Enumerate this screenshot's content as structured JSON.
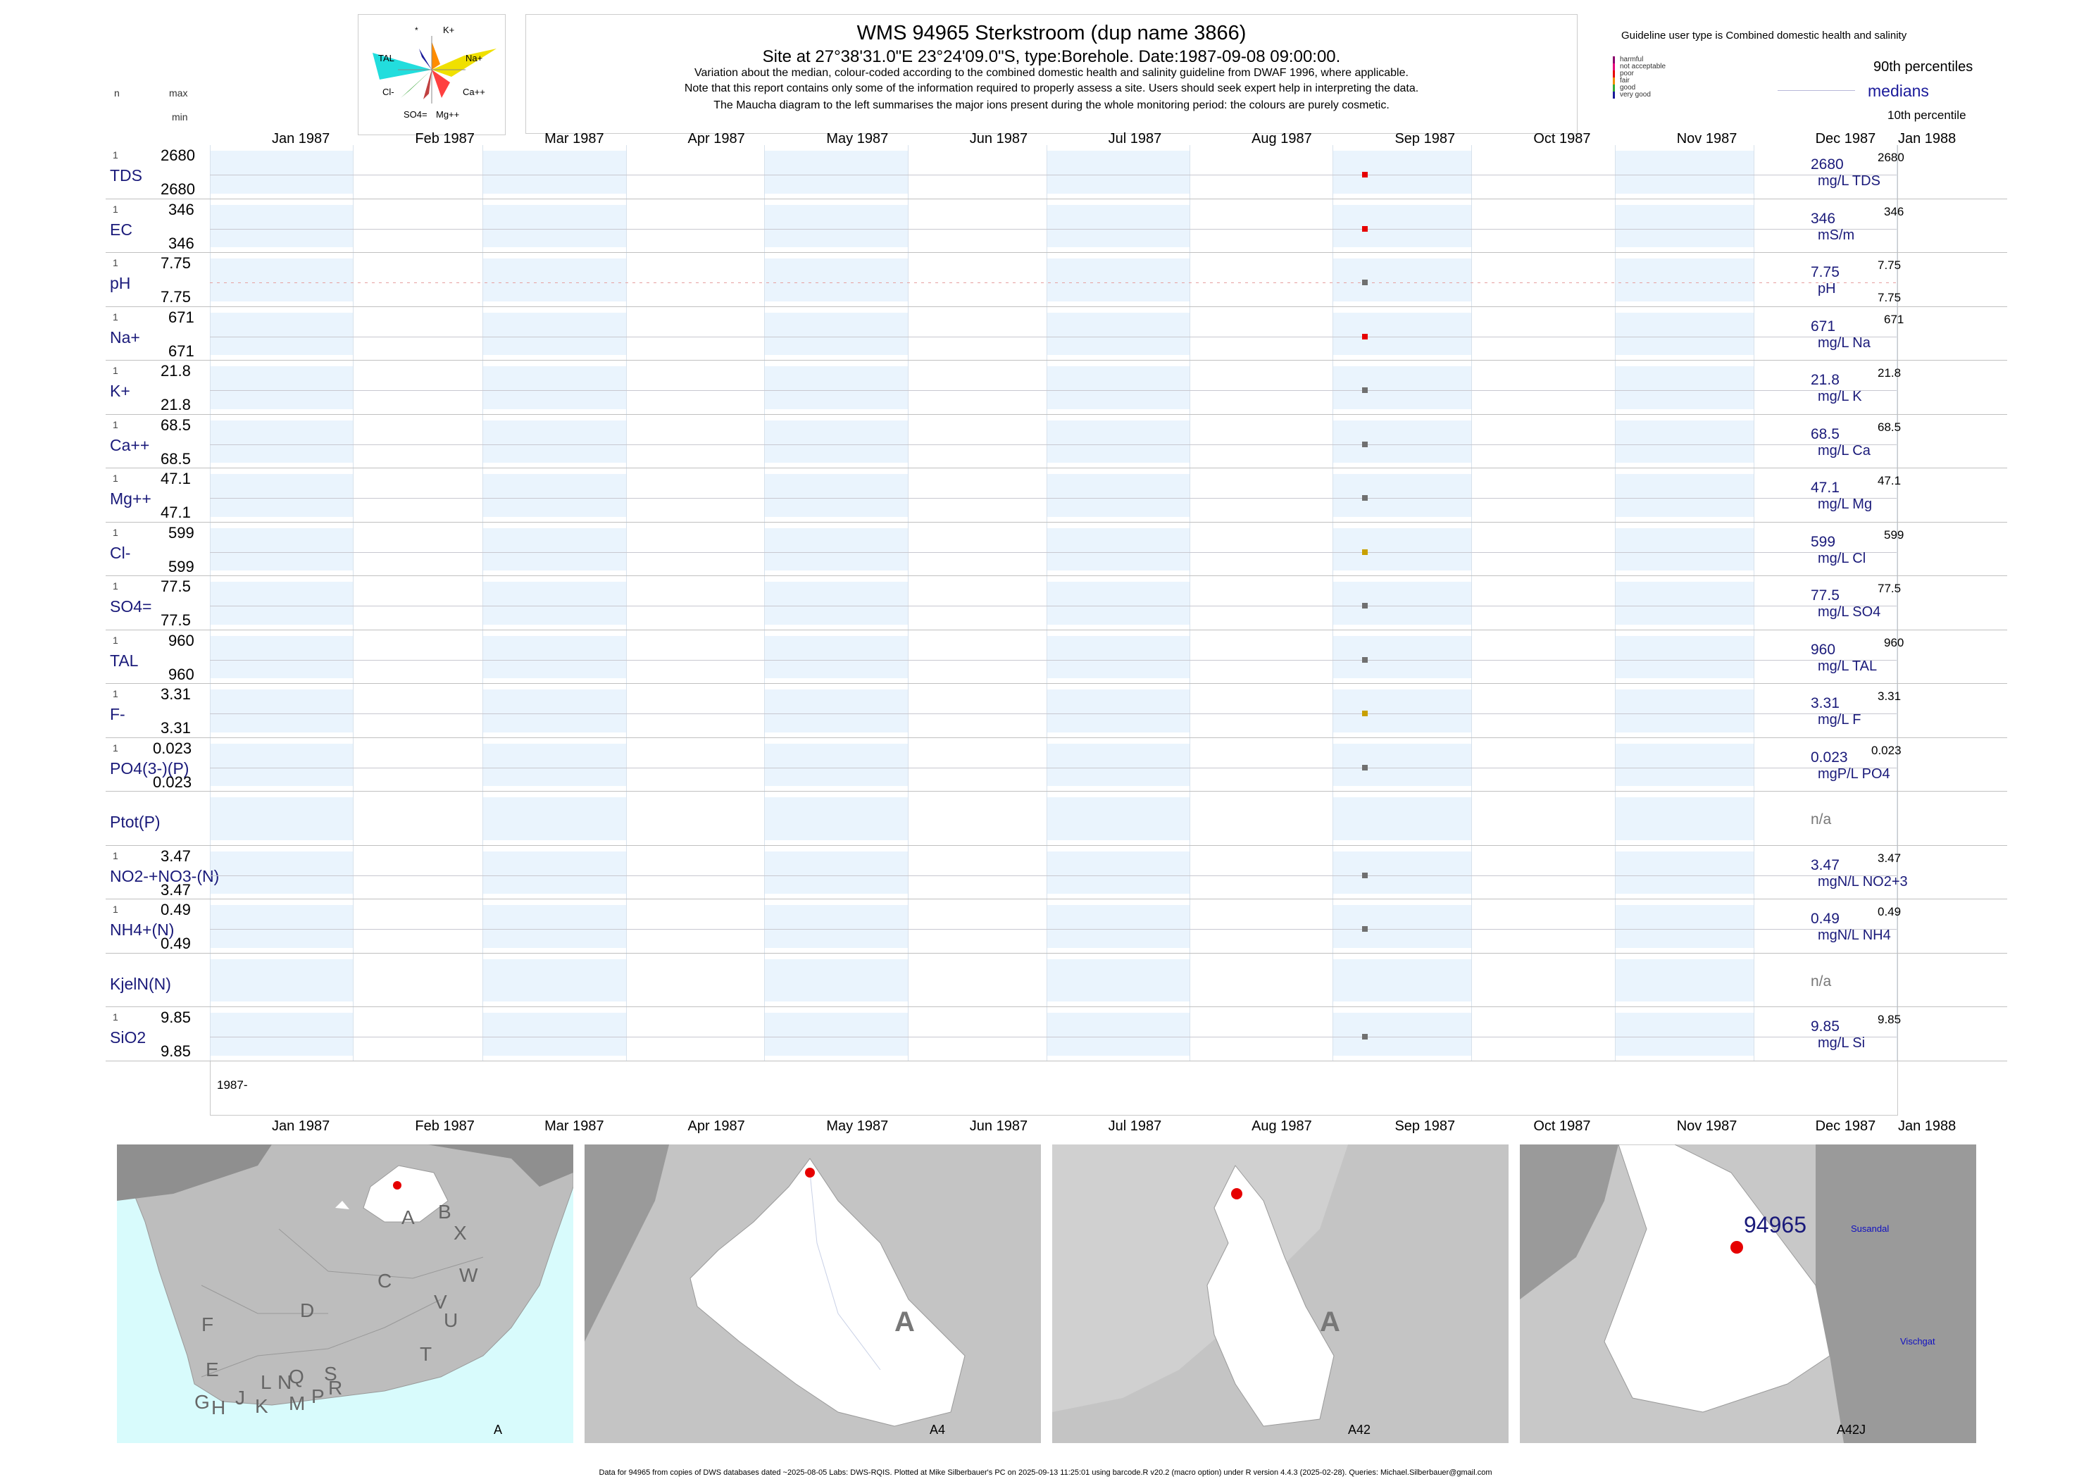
{
  "header": {
    "title": "WMS 94965  Sterkstroom (dup name 3866)",
    "subtitle": "Site at 27°38'31.0\"E 23°24'09.0\"S, type:Borehole. Date:1987-09-08 09:00:00.",
    "note1": "Variation about the median,  colour-coded according to the combined domestic health and salinity guideline from DWAF 1996, where applicable.",
    "note2": "Note that this report contains only some of the information required to properly assess a site. Users should seek expert help in interpreting the data.",
    "note3": "The Maucha diagram to the left summarises the major ions present during the whole monitoring period: the colours are purely cosmetic.",
    "n_label": "n",
    "max_label": "max",
    "min_label": "min"
  },
  "maucha": {
    "labels": [
      "*",
      "K+",
      "TAL",
      "Na+",
      "Cl-",
      "Ca++",
      "SO4=",
      "Mg++"
    ]
  },
  "guideline": {
    "title": "Guideline user type is Combined domestic health and salinity",
    "levels": [
      {
        "name": "harmful",
        "color": "#8b006b"
      },
      {
        "name": "not acceptable",
        "color": "#e6007a"
      },
      {
        "name": "poor",
        "color": "#e60000"
      },
      {
        "name": "fair",
        "color": "#f08c00"
      },
      {
        "name": "good",
        "color": "#33aa33"
      },
      {
        "name": "very good",
        "color": "#1a1a9a"
      }
    ],
    "p90": "90th percentiles",
    "medians": "medians",
    "p10": "10th percentile"
  },
  "chart_data": {
    "type": "scatter",
    "x_axis": {
      "ticks": [
        "Jan 1987",
        "Feb 1987",
        "Mar 1987",
        "Apr 1987",
        "May 1987",
        "Jun 1987",
        "Jul 1987",
        "Aug 1987",
        "Sep 1987",
        "Oct 1987",
        "Nov 1987",
        "Dec 1987",
        "Jan 1988"
      ],
      "range": [
        "1987-01-01",
        "1988-01-01"
      ],
      "year_label": "1987-"
    },
    "sample_date": "1987-09-08",
    "rows": [
      {
        "param": "TDS",
        "n": "1",
        "max": "2680",
        "min": "2680",
        "median": "2680",
        "unit": "mg/L TDS",
        "p90": "2680",
        "p10": "",
        "value": 2680,
        "color": "#e60000"
      },
      {
        "param": "EC",
        "n": "1",
        "max": "346",
        "min": "346",
        "median": "346",
        "unit": "mS/m",
        "p90": "346",
        "p10": "",
        "value": 346,
        "color": "#e60000"
      },
      {
        "param": "pH",
        "n": "1",
        "max": "7.75",
        "min": "7.75",
        "median": "7.75",
        "unit": "pH",
        "p90": "7.75",
        "p10": "7.75",
        "value": 7.75,
        "color": "#707070"
      },
      {
        "param": "Na+",
        "n": "1",
        "max": "671",
        "min": "671",
        "median": "671",
        "unit": "mg/L Na",
        "p90": "671",
        "p10": "",
        "value": 671,
        "color": "#e60000"
      },
      {
        "param": "K+",
        "n": "1",
        "max": "21.8",
        "min": "21.8",
        "median": "21.8",
        "unit": "mg/L K",
        "p90": "21.8",
        "p10": "",
        "value": 21.8,
        "color": "#707070"
      },
      {
        "param": "Ca++",
        "n": "1",
        "max": "68.5",
        "min": "68.5",
        "median": "68.5",
        "unit": "mg/L Ca",
        "p90": "68.5",
        "p10": "",
        "value": 68.5,
        "color": "#707070"
      },
      {
        "param": "Mg++",
        "n": "1",
        "max": "47.1",
        "min": "47.1",
        "median": "47.1",
        "unit": "mg/L Mg",
        "p90": "47.1",
        "p10": "",
        "value": 47.1,
        "color": "#707070"
      },
      {
        "param": "Cl-",
        "n": "1",
        "max": "599",
        "min": "599",
        "median": "599",
        "unit": "mg/L Cl",
        "p90": "599",
        "p10": "",
        "value": 599,
        "color": "#c8a000"
      },
      {
        "param": "SO4=",
        "n": "1",
        "max": "77.5",
        "min": "77.5",
        "median": "77.5",
        "unit": "mg/L SO4",
        "p90": "77.5",
        "p10": "",
        "value": 77.5,
        "color": "#707070"
      },
      {
        "param": "TAL",
        "n": "1",
        "max": "960",
        "min": "960",
        "median": "960",
        "unit": "mg/L TAL",
        "p90": "960",
        "p10": "",
        "value": 960,
        "color": "#707070"
      },
      {
        "param": "F-",
        "n": "1",
        "max": "3.31",
        "min": "3.31",
        "median": "3.31",
        "unit": "mg/L F",
        "p90": "3.31",
        "p10": "",
        "value": 3.31,
        "color": "#c8a000"
      },
      {
        "param": "PO4(3-)(P)",
        "n": "1",
        "max": "0.023",
        "min": "0.023",
        "median": "0.023",
        "unit": "mgP/L PO4",
        "p90": "0.023",
        "p10": "",
        "value": 0.023,
        "color": "#707070"
      },
      {
        "param": "Ptot(P)",
        "n": "",
        "max": "",
        "min": "",
        "median": "n/a",
        "unit": "",
        "p90": "",
        "p10": "",
        "value": null,
        "color": ""
      },
      {
        "param": "NO2-+NO3-(N)",
        "n": "1",
        "max": "3.47",
        "min": "3.47",
        "median": "3.47",
        "unit": "mgN/L NO2+3",
        "p90": "3.47",
        "p10": "",
        "value": 3.47,
        "color": "#707070"
      },
      {
        "param": "NH4+(N)",
        "n": "1",
        "max": "0.49",
        "min": "0.49",
        "median": "0.49",
        "unit": "mgN/L NH4",
        "p90": "0.49",
        "p10": "",
        "value": 0.49,
        "color": "#707070"
      },
      {
        "param": "KjelN(N)",
        "n": "",
        "max": "",
        "min": "",
        "median": "n/a",
        "unit": "",
        "p90": "",
        "p10": "",
        "value": null,
        "color": ""
      },
      {
        "param": "SiO2",
        "n": "1",
        "max": "9.85",
        "min": "9.85",
        "median": "9.85",
        "unit": "mg/L Si",
        "p90": "9.85",
        "p10": "",
        "value": 9.85,
        "color": "#707070"
      }
    ]
  },
  "maps": {
    "panel1": {
      "caption": "A",
      "regions": [
        "A",
        "B",
        "X",
        "C",
        "W",
        "D",
        "V",
        "U",
        "T",
        "F",
        "E",
        "G",
        "H",
        "J",
        "K",
        "L",
        "N",
        "M",
        "Q",
        "P",
        "S",
        "R"
      ]
    },
    "panel2": {
      "caption": "A4",
      "letter": "A"
    },
    "panel3": {
      "caption": "A42",
      "letter": "A"
    },
    "panel4": {
      "caption": "A42J",
      "site_label": "94965",
      "place1": "Susandal",
      "place2": "Vischgat"
    }
  },
  "footer": "Data for 94965 from copies of DWS databases dated ~2025-08-05 Labs: DWS-RQIS. Plotted at Mike Silberbauer's PC on 2025-09-13 11:25:01 using barcode.R v20.2 (macro option) under R version 4.4.3 (2025-02-28). Queries: Michael.Silberbauer@gmail.com"
}
